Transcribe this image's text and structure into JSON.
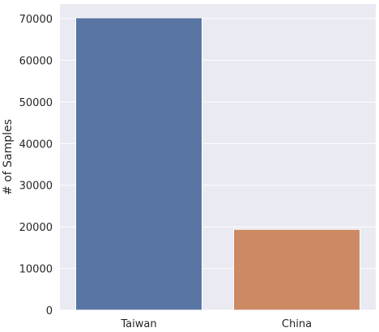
{
  "chart_data": {
    "type": "bar",
    "categories": [
      "Taiwan",
      "China"
    ],
    "values": [
      70200,
      19400
    ],
    "colors": [
      "#5975a4",
      "#cc8963"
    ],
    "ylabel": "# of Samples",
    "xlabel": "",
    "ylim": [
      0,
      73500
    ],
    "yticks": [
      0,
      10000,
      20000,
      30000,
      40000,
      50000,
      60000,
      70000
    ],
    "ytick_labels": [
      "0",
      "10000",
      "20000",
      "30000",
      "40000",
      "50000",
      "60000",
      "70000"
    ],
    "grid": true,
    "background": "#eaeaf2"
  }
}
